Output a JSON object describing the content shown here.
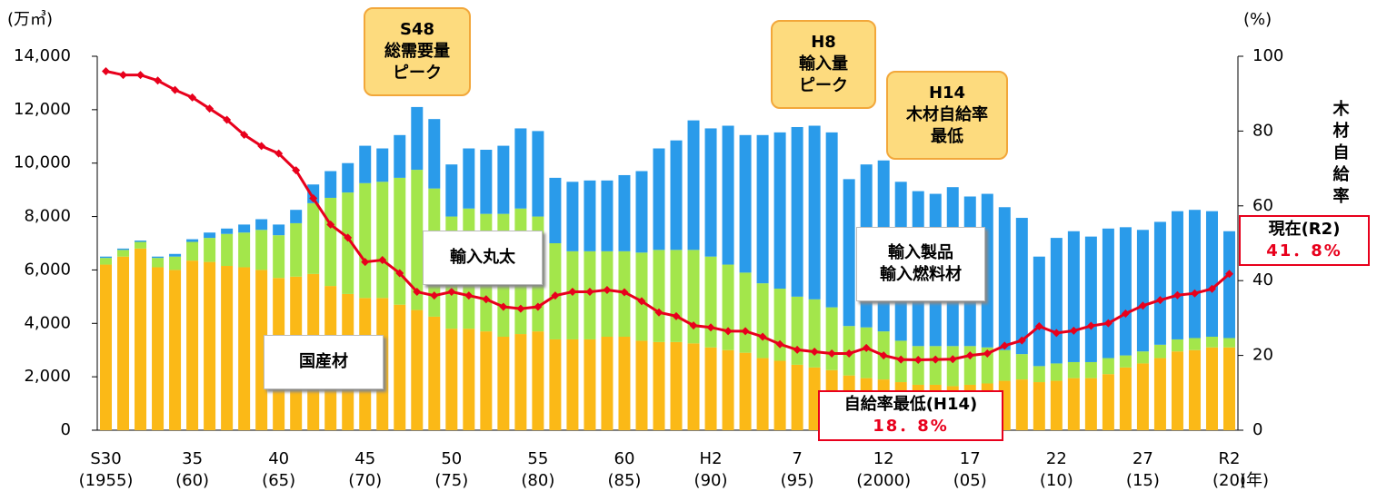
{
  "chart_data": {
    "type": "stacked-bar-line",
    "y_unit": "(万㎥)",
    "y2_unit": "(%)",
    "x_unit": "(年)",
    "categories": [
      "S30\n(1955)",
      null,
      null,
      null,
      null,
      "35\n(60)",
      null,
      null,
      null,
      null,
      "40\n(65)",
      null,
      null,
      null,
      null,
      "45\n(70)",
      null,
      null,
      null,
      null,
      "50\n(75)",
      null,
      null,
      null,
      null,
      "55\n(80)",
      null,
      null,
      null,
      null,
      "60\n(85)",
      null,
      null,
      null,
      null,
      "H2\n(90)",
      null,
      null,
      null,
      null,
      "7\n(95)",
      null,
      null,
      null,
      null,
      "12\n(2000)",
      null,
      null,
      null,
      null,
      "17\n(05)",
      null,
      null,
      null,
      null,
      "22\n(10)",
      null,
      null,
      null,
      null,
      "27\n(15)",
      null,
      null,
      null,
      null,
      "R2\n(20)"
    ],
    "ylim": [
      0,
      14000
    ],
    "yticks": [
      0,
      {
        "value": 2000,
        "label": "2,000"
      },
      {
        "value": 4000,
        "label": "4,000"
      },
      {
        "value": 6000,
        "label": "6,000"
      },
      {
        "value": 8000,
        "label": "8,000"
      },
      {
        "value": 10000,
        "label": "10,000"
      },
      {
        "value": 12000,
        "label": "12,000"
      },
      {
        "value": 14000,
        "label": "14,000"
      }
    ],
    "y2lim": [
      0,
      100
    ],
    "y2ticks": [
      0,
      20,
      40,
      60,
      80,
      100
    ],
    "series": [
      {
        "name": "国産材",
        "color": "#FBB917",
        "values": [
          6200,
          6500,
          6800,
          6100,
          6000,
          6350,
          6300,
          6150,
          6100,
          6000,
          5700,
          5750,
          5850,
          5400,
          5100,
          4950,
          4950,
          4700,
          4500,
          4250,
          3800,
          3800,
          3700,
          3500,
          3600,
          3700,
          3400,
          3400,
          3400,
          3500,
          3500,
          3350,
          3300,
          3300,
          3250,
          3100,
          3000,
          2900,
          2700,
          2600,
          2450,
          2350,
          2250,
          2050,
          1950,
          1900,
          1800,
          1700,
          1700,
          1650,
          1700,
          1750,
          1850,
          1900,
          1800,
          1850,
          1950,
          1950,
          2100,
          2350,
          2500,
          2700,
          2950,
          3000,
          3100,
          3100
        ]
      },
      {
        "name": "輸入丸太",
        "color": "#A3E64B",
        "values": [
          250,
          250,
          250,
          350,
          500,
          700,
          900,
          1200,
          1300,
          1500,
          1600,
          2000,
          2650,
          3300,
          3800,
          4300,
          4350,
          4750,
          5250,
          4800,
          4200,
          4500,
          4400,
          4600,
          4700,
          4300,
          3600,
          3300,
          3300,
          3200,
          3200,
          3300,
          3450,
          3450,
          3500,
          3400,
          3200,
          3000,
          2800,
          2700,
          2550,
          2550,
          2350,
          1850,
          1900,
          1800,
          1550,
          1450,
          1450,
          1500,
          1450,
          1350,
          1150,
          950,
          600,
          650,
          600,
          600,
          600,
          450,
          450,
          500,
          450,
          450,
          400,
          350
        ]
      },
      {
        "name": "輸入製品\n輸入燃料材",
        "color": "#2A9BEA",
        "values": [
          50,
          50,
          50,
          50,
          100,
          100,
          200,
          200,
          300,
          400,
          400,
          500,
          700,
          1000,
          1100,
          1400,
          1250,
          1600,
          2350,
          2600,
          1950,
          2250,
          2400,
          2550,
          3000,
          3200,
          2450,
          2600,
          2650,
          2650,
          2850,
          3050,
          3800,
          4100,
          4850,
          4800,
          5200,
          5150,
          5550,
          5850,
          6350,
          6500,
          6550,
          5500,
          6100,
          6400,
          5950,
          5800,
          5700,
          5950,
          5600,
          5750,
          5350,
          5100,
          4100,
          4700,
          4900,
          4700,
          4850,
          4800,
          4550,
          4600,
          4800,
          4800,
          4700,
          4000
        ]
      },
      {
        "name": "木材自給率",
        "color": "#E8001C",
        "axis": "y2",
        "values": [
          96,
          95,
          95,
          93.5,
          91,
          89,
          86,
          83,
          79,
          76,
          74,
          69.5,
          62,
          55,
          51.5,
          45,
          45.5,
          42,
          37,
          36,
          37,
          36,
          35,
          33,
          32.5,
          33,
          36,
          37,
          37,
          37.5,
          36.9,
          34.5,
          31.5,
          30.5,
          28,
          27.5,
          26.5,
          26.5,
          25,
          23,
          21.5,
          21,
          20.5,
          20.5,
          22,
          20,
          18.9,
          18.8,
          18.9,
          19,
          20,
          20.5,
          22.6,
          24,
          27.8,
          26,
          26.6,
          27.9,
          28.6,
          31.2,
          33.3,
          34.8,
          36.1,
          36.6,
          37.8,
          41.8
        ],
        "value_labels": [
          null,
          null,
          null,
          null,
          null,
          null,
          null,
          null,
          null,
          null,
          null,
          null,
          null,
          null,
          null,
          null,
          null,
          null,
          null,
          null,
          null,
          null,
          null,
          null,
          null,
          null,
          null,
          null,
          null,
          null,
          null,
          null,
          null,
          null,
          null,
          null,
          null,
          null,
          null,
          null,
          null,
          null,
          null,
          null,
          null,
          null,
          null,
          "18．8%",
          null,
          null,
          null,
          null,
          null,
          null,
          null,
          null,
          null,
          null,
          null,
          null,
          null,
          null,
          null,
          null,
          null,
          "41．8%"
        ]
      }
    ],
    "annotations": [
      "S48\n総需要量\nピーク",
      "H8\n輸入量\nピーク",
      "H14\n木材自給率\n最低",
      "自給率最低(H14)",
      "現在(R2)"
    ]
  }
}
